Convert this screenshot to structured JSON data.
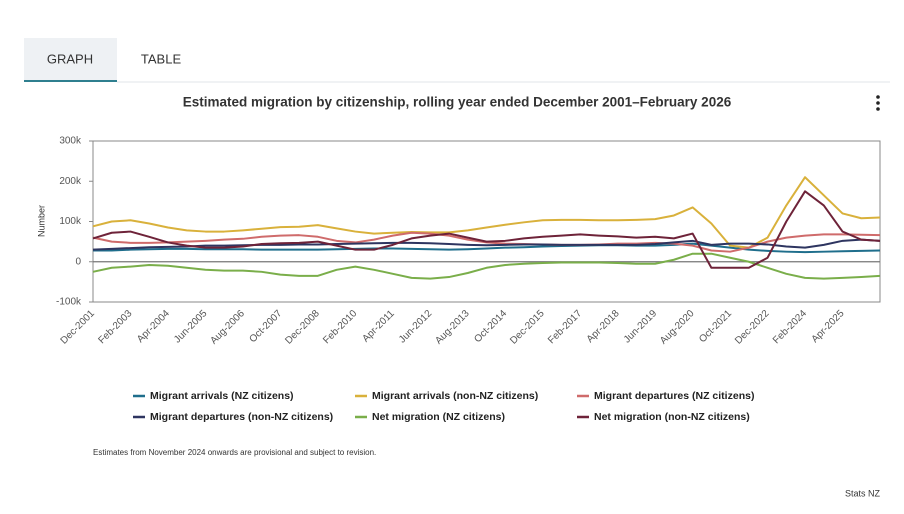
{
  "tabs": [
    "GRAPH",
    "TABLE"
  ],
  "footnote": "Estimates from November 2024 onwards are provisional and subject to revision.",
  "source": "Stats NZ",
  "chart_data": {
    "type": "line",
    "title": "Estimated migration by citizenship, rolling year ended December 2001–February 2026",
    "y_label": "Number",
    "categories": [
      "Dec-2001",
      null,
      "Feb-2003",
      null,
      "Apr-2004",
      null,
      "Jun-2005",
      null,
      "Aug-2006",
      null,
      "Oct-2007",
      null,
      "Dec-2008",
      null,
      "Feb-2010",
      null,
      "Apr-2011",
      null,
      "Jun-2012",
      null,
      "Aug-2013",
      null,
      "Oct-2014",
      null,
      "Dec-2015",
      null,
      "Feb-2017",
      null,
      "Apr-2018",
      null,
      "Jun-2019",
      null,
      "Aug-2020",
      null,
      "Oct-2021",
      null,
      "Dec-2022",
      null,
      "Feb-2024",
      null,
      "Apr-2025",
      null,
      null
    ],
    "ylim": [
      -100000,
      300000
    ],
    "yticks": [
      {
        "value": -100000,
        "label": "-100k"
      },
      0,
      {
        "value": 100000,
        "label": "100k"
      },
      {
        "value": 200000,
        "label": "200k"
      },
      {
        "value": 300000,
        "label": "300k"
      }
    ],
    "series": [
      {
        "name": "Migrant arrivals (NZ citizens)",
        "color": "#1f6e8c",
        "values": [
          28000,
          28000,
          30000,
          31000,
          32000,
          32000,
          31000,
          31000,
          31000,
          30000,
          30000,
          30000,
          30000,
          31000,
          32000,
          33000,
          33000,
          32000,
          31000,
          30000,
          31000,
          33000,
          35000,
          36000,
          38000,
          39000,
          40000,
          41000,
          41000,
          40000,
          40000,
          42000,
          45000,
          40000,
          35000,
          30000,
          27000,
          25000,
          24000,
          25000,
          26000,
          27000,
          28000
        ]
      },
      {
        "name": "Migrant arrivals (non-NZ citizens)",
        "color": "#d9b13b",
        "values": [
          88000,
          100000,
          103000,
          95000,
          85000,
          78000,
          75000,
          75000,
          78000,
          82000,
          86000,
          87000,
          91000,
          83000,
          75000,
          70000,
          72000,
          74000,
          73000,
          73000,
          78000,
          85000,
          92000,
          98000,
          103000,
          104000,
          104000,
          103000,
          103000,
          104000,
          106000,
          115000,
          135000,
          95000,
          40000,
          35000,
          60000,
          140000,
          210000,
          165000,
          120000,
          108000,
          110000
        ]
      },
      {
        "name": "Migrant departures (NZ citizens)",
        "color": "#cf6b6b",
        "values": [
          60000,
          50000,
          47000,
          47000,
          48000,
          50000,
          52000,
          55000,
          57000,
          62000,
          65000,
          66000,
          62000,
          52000,
          48000,
          55000,
          65000,
          72000,
          70000,
          65000,
          55000,
          48000,
          45000,
          44000,
          43000,
          42000,
          42000,
          43000,
          45000,
          45000,
          47000,
          45000,
          40000,
          28000,
          25000,
          35000,
          50000,
          60000,
          65000,
          68000,
          68000,
          67000,
          66000
        ]
      },
      {
        "name": "Migrant departures (non-NZ citizens)",
        "color": "#2e3560",
        "values": [
          30000,
          32000,
          34000,
          36000,
          37000,
          38000,
          40000,
          40000,
          41000,
          42000,
          42000,
          43000,
          43000,
          44000,
          45000,
          46000,
          47000,
          47000,
          46000,
          44000,
          42000,
          41000,
          42000,
          43000,
          43000,
          42000,
          42000,
          42000,
          42000,
          42000,
          44000,
          48000,
          52000,
          42000,
          45000,
          45000,
          43000,
          38000,
          35000,
          42000,
          52000,
          55000,
          52000
        ]
      },
      {
        "name": "Net migration (NZ citizens)",
        "color": "#7aae4a",
        "values": [
          -25000,
          -15000,
          -12000,
          -8000,
          -10000,
          -15000,
          -20000,
          -22000,
          -22000,
          -25000,
          -32000,
          -35000,
          -35000,
          -20000,
          -12000,
          -20000,
          -30000,
          -40000,
          -42000,
          -38000,
          -28000,
          -15000,
          -8000,
          -5000,
          -3000,
          -2000,
          -2000,
          -2000,
          -3000,
          -5000,
          -5000,
          5000,
          20000,
          20000,
          10000,
          0,
          -15000,
          -30000,
          -40000,
          -42000,
          -40000,
          -38000,
          -35000
        ]
      },
      {
        "name": "Net migration (non-NZ citizens)",
        "color": "#6e2339",
        "values": [
          58000,
          72000,
          75000,
          62000,
          48000,
          40000,
          35000,
          35000,
          38000,
          44000,
          46000,
          47000,
          50000,
          40000,
          30000,
          30000,
          42000,
          58000,
          65000,
          70000,
          60000,
          50000,
          52000,
          58000,
          62000,
          65000,
          68000,
          65000,
          63000,
          60000,
          62000,
          58000,
          70000,
          -15000,
          -15000,
          -15000,
          10000,
          100000,
          175000,
          140000,
          75000,
          55000,
          52000
        ]
      }
    ]
  }
}
